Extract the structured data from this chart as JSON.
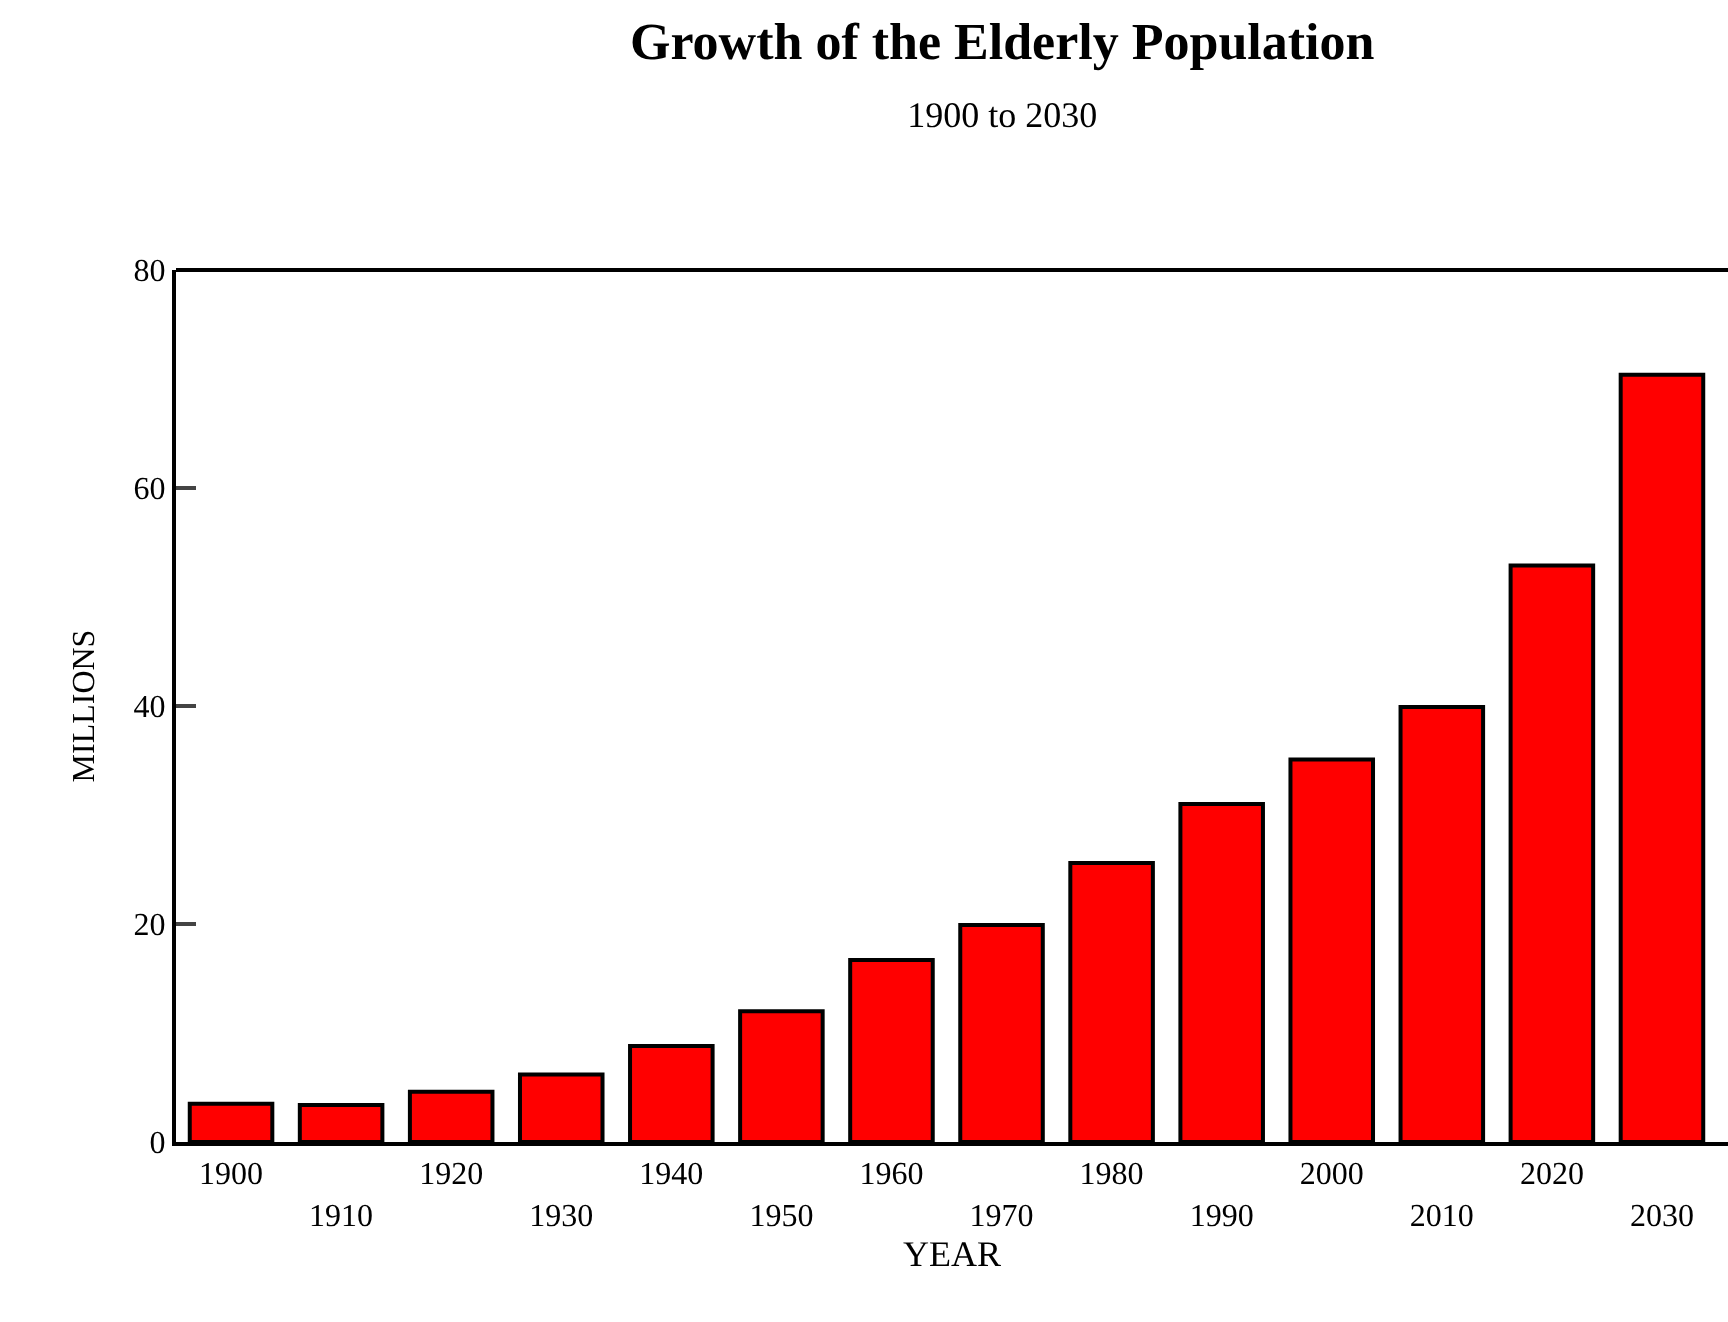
{
  "chart_data": {
    "type": "bar",
    "title": "Growth of the Elderly Population",
    "subtitle": "1900 to 2030",
    "xlabel": "YEAR",
    "ylabel": "MILLIONS",
    "categories": [
      "1900",
      "1910",
      "1920",
      "1930",
      "1940",
      "1950",
      "1960",
      "1970",
      "1980",
      "1990",
      "2000",
      "2010",
      "2020",
      "2030"
    ],
    "values": [
      3.5,
      3.4,
      4.6,
      6.2,
      8.8,
      12.0,
      16.7,
      19.9,
      25.6,
      31.0,
      35.1,
      39.9,
      52.9,
      70.4
    ],
    "color": "#ff0000",
    "ylim": [
      0,
      80
    ],
    "yticks": [
      0,
      20,
      40,
      60,
      80
    ]
  }
}
